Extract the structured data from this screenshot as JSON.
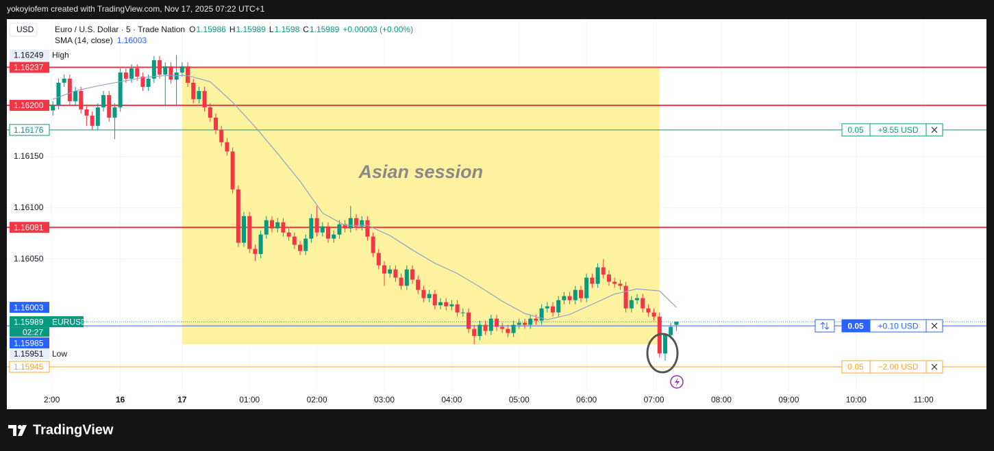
{
  "header": "yokoyiofem created with TradingView.com, Nov 17, 2025 07:22 UTC+1",
  "footer": "TradingView",
  "chart_data": {
    "type": "candlestick",
    "currency": "USD",
    "symbol": "Euro / U.S. Dollar · 5 · Trade Nation",
    "ohlc_labels": [
      "O",
      "H",
      "L",
      "C"
    ],
    "change": "+0.00003 (+0.00%)",
    "up_color": "#089981",
    "down_color": "#f23645",
    "xlim": [
      -156,
      716
    ],
    "xticks": [
      {
        "value": -116,
        "label": "2:00"
      },
      {
        "value": -55,
        "label": "16"
      },
      {
        "value": 0,
        "label": "17"
      },
      {
        "value": 60,
        "label": "01:00"
      },
      {
        "value": 120,
        "label": "02:00"
      },
      {
        "value": 180,
        "label": "03:00"
      },
      {
        "value": 240,
        "label": "04:00"
      },
      {
        "value": 300,
        "label": "05:00"
      },
      {
        "value": 360,
        "label": "06:00"
      },
      {
        "value": 420,
        "label": "07:00"
      },
      {
        "value": 480,
        "label": "08:00"
      },
      {
        "value": 540,
        "label": "09:00"
      },
      {
        "value": 600,
        "label": "10:00"
      },
      {
        "value": 660,
        "label": "11:00"
      }
    ],
    "ylim": [
      1.15921,
      1.16284
    ],
    "yticks": [
      {
        "value": 1.1615,
        "label": "1.16150"
      },
      {
        "value": 1.161,
        "label": "1.16100"
      },
      {
        "value": 1.1605,
        "label": "1.16050"
      }
    ],
    "grid": true,
    "x": [
      -115,
      -110,
      -105,
      -100,
      -95,
      -90,
      -85,
      -80,
      -75,
      -70,
      -65,
      -60,
      -55,
      -50,
      -45,
      -40,
      -35,
      -30,
      -25,
      -20,
      -15,
      -10,
      -5,
      0,
      5,
      10,
      15,
      20,
      25,
      30,
      35,
      40,
      45,
      50,
      55,
      60,
      65,
      70,
      75,
      80,
      85,
      90,
      95,
      100,
      105,
      110,
      115,
      120,
      125,
      130,
      135,
      140,
      145,
      150,
      155,
      160,
      165,
      170,
      175,
      180,
      185,
      190,
      195,
      200,
      205,
      210,
      215,
      220,
      225,
      230,
      235,
      240,
      245,
      250,
      255,
      260,
      265,
      270,
      275,
      280,
      285,
      290,
      295,
      300,
      305,
      310,
      315,
      320,
      325,
      330,
      335,
      340,
      345,
      350,
      355,
      360,
      365,
      370,
      375,
      380,
      385,
      390,
      395,
      400,
      405,
      410,
      415,
      420,
      425,
      430,
      435,
      440
    ],
    "candles": [
      [
        1.16195,
        1.16204,
        1.1619,
        1.162
      ],
      [
        1.162,
        1.16226,
        1.16196,
        1.16222
      ],
      [
        1.16222,
        1.1623,
        1.16218,
        1.16226
      ],
      [
        1.16226,
        1.1623,
        1.162,
        1.16204
      ],
      [
        1.16204,
        1.16218,
        1.162,
        1.16214
      ],
      [
        1.16214,
        1.16218,
        1.16192,
        1.16196
      ],
      [
        1.16196,
        1.162,
        1.1618,
        1.1619
      ],
      [
        1.1619,
        1.16194,
        1.16176,
        1.1618
      ],
      [
        1.1618,
        1.16202,
        1.16176,
        1.16198
      ],
      [
        1.16198,
        1.16214,
        1.16194,
        1.1621
      ],
      [
        1.1621,
        1.16214,
        1.16184,
        1.16188
      ],
      [
        1.16188,
        1.16202,
        1.16167,
        1.16198
      ],
      [
        1.16198,
        1.16236,
        1.16194,
        1.16232
      ],
      [
        1.16232,
        1.16236,
        1.16222,
        1.16226
      ],
      [
        1.16226,
        1.1624,
        1.16222,
        1.16236
      ],
      [
        1.16236,
        1.1624,
        1.16224,
        1.16228
      ],
      [
        1.16228,
        1.16232,
        1.16214,
        1.16218
      ],
      [
        1.16218,
        1.1623,
        1.16214,
        1.16226
      ],
      [
        1.16226,
        1.16248,
        1.16222,
        1.16244
      ],
      [
        1.16244,
        1.16248,
        1.16226,
        1.1623
      ],
      [
        1.1623,
        1.16242,
        1.162,
        1.16238
      ],
      [
        1.16238,
        1.16242,
        1.16221,
        1.16225
      ],
      [
        1.16225,
        1.16249,
        1.162,
        1.16232
      ],
      [
        1.16232,
        1.16242,
        1.16228,
        1.16238
      ],
      [
        1.16238,
        1.16242,
        1.16218,
        1.16222
      ],
      [
        1.16222,
        1.16226,
        1.16202,
        1.16206
      ],
      [
        1.16206,
        1.16218,
        1.16202,
        1.16214
      ],
      [
        1.16214,
        1.16218,
        1.16194,
        1.16198
      ],
      [
        1.16198,
        1.16202,
        1.16184,
        1.16188
      ],
      [
        1.16188,
        1.16192,
        1.16172,
        1.16176
      ],
      [
        1.16176,
        1.1618,
        1.1616,
        1.16164
      ],
      [
        1.16164,
        1.16168,
        1.16151,
        1.16155
      ],
      [
        1.16155,
        1.16159,
        1.16114,
        1.16118
      ],
      [
        1.16118,
        1.16122,
        1.16062,
        1.16066
      ],
      [
        1.16066,
        1.16096,
        1.16062,
        1.16092
      ],
      [
        1.16092,
        1.16096,
        1.16056,
        1.1606
      ],
      [
        1.1606,
        1.16064,
        1.16048,
        1.16055
      ],
      [
        1.16055,
        1.16078,
        1.16051,
        1.16074
      ],
      [
        1.16074,
        1.16092,
        1.1607,
        1.16088
      ],
      [
        1.16088,
        1.16092,
        1.16076,
        1.1608
      ],
      [
        1.1608,
        1.1609,
        1.16076,
        1.16086
      ],
      [
        1.16086,
        1.1609,
        1.16072,
        1.16076
      ],
      [
        1.16076,
        1.1608,
        1.16068,
        1.16072
      ],
      [
        1.16072,
        1.16076,
        1.1606,
        1.16064
      ],
      [
        1.16064,
        1.16068,
        1.16054,
        1.16058
      ],
      [
        1.16058,
        1.16074,
        1.16054,
        1.1607
      ],
      [
        1.1607,
        1.16094,
        1.16066,
        1.1609
      ],
      [
        1.1609,
        1.16102,
        1.16072,
        1.16076
      ],
      [
        1.16076,
        1.16086,
        1.16072,
        1.16082
      ],
      [
        1.16082,
        1.16086,
        1.16066,
        1.1607
      ],
      [
        1.1607,
        1.16078,
        1.16066,
        1.16074
      ],
      [
        1.16074,
        1.16088,
        1.1607,
        1.16084
      ],
      [
        1.16084,
        1.16088,
        1.16076,
        1.1608
      ],
      [
        1.1608,
        1.16102,
        1.16076,
        1.1609
      ],
      [
        1.1609,
        1.16094,
        1.16078,
        1.16082
      ],
      [
        1.16082,
        1.16092,
        1.16078,
        1.16088
      ],
      [
        1.16088,
        1.16092,
        1.16068,
        1.16072
      ],
      [
        1.16072,
        1.16076,
        1.16052,
        1.16056
      ],
      [
        1.16056,
        1.1606,
        1.1604,
        1.16044
      ],
      [
        1.16044,
        1.16048,
        1.16024,
        1.16036
      ],
      [
        1.16036,
        1.16044,
        1.16032,
        1.1604
      ],
      [
        1.1604,
        1.16044,
        1.16028,
        1.16032
      ],
      [
        1.16032,
        1.16036,
        1.1602,
        1.16024
      ],
      [
        1.16024,
        1.16044,
        1.1602,
        1.1604
      ],
      [
        1.1604,
        1.16044,
        1.16026,
        1.1603
      ],
      [
        1.1603,
        1.16034,
        1.16016,
        1.1602
      ],
      [
        1.1602,
        1.16024,
        1.16008,
        1.16012
      ],
      [
        1.16012,
        1.1602,
        1.16008,
        1.16016
      ],
      [
        1.16016,
        1.1602,
        1.16001,
        1.16005
      ],
      [
        1.16005,
        1.16012,
        1.16001,
        1.16008
      ],
      [
        1.16008,
        1.16012,
        1.16,
        1.16004
      ],
      [
        1.16004,
        1.1601,
        1.16,
        1.16006
      ],
      [
        1.16006,
        1.1601,
        1.15994,
        1.15998
      ],
      [
        1.15998,
        1.16002,
        1.15994,
        1.15998
      ],
      [
        1.15998,
        1.16002,
        1.15978,
        1.15982
      ],
      [
        1.15982,
        1.15986,
        1.15967,
        1.15975
      ],
      [
        1.15975,
        1.1599,
        1.15971,
        1.15986
      ],
      [
        1.15986,
        1.1599,
        1.15976,
        1.1598
      ],
      [
        1.1598,
        1.15996,
        1.15976,
        1.15992
      ],
      [
        1.15992,
        1.15996,
        1.1598,
        1.15984
      ],
      [
        1.15984,
        1.15988,
        1.15978,
        1.15982
      ],
      [
        1.15982,
        1.15986,
        1.15974,
        1.15978
      ],
      [
        1.15978,
        1.1599,
        1.15974,
        1.15986
      ],
      [
        1.15986,
        1.15992,
        1.15982,
        1.15988
      ],
      [
        1.15988,
        1.15992,
        1.15982,
        1.15986
      ],
      [
        1.15986,
        1.15996,
        1.15982,
        1.15992
      ],
      [
        1.15992,
        1.15996,
        1.15986,
        1.1599
      ],
      [
        1.1599,
        1.16006,
        1.15986,
        1.16002
      ],
      [
        1.16002,
        1.16008,
        1.15998,
        1.16004
      ],
      [
        1.16004,
        1.16008,
        1.15994,
        1.15998
      ],
      [
        1.15998,
        1.16014,
        1.15994,
        1.1601
      ],
      [
        1.1601,
        1.16018,
        1.16006,
        1.16014
      ],
      [
        1.16014,
        1.16018,
        1.16006,
        1.1601
      ],
      [
        1.1601,
        1.16024,
        1.16006,
        1.1602
      ],
      [
        1.1602,
        1.16024,
        1.16008,
        1.16012
      ],
      [
        1.16012,
        1.16036,
        1.16008,
        1.16032
      ],
      [
        1.16032,
        1.16036,
        1.16022,
        1.16026
      ],
      [
        1.16026,
        1.16046,
        1.16022,
        1.16042
      ],
      [
        1.16042,
        1.1605,
        1.16031,
        1.16035
      ],
      [
        1.16035,
        1.16039,
        1.16024,
        1.16028
      ],
      [
        1.16028,
        1.16032,
        1.16022,
        1.16026
      ],
      [
        1.16026,
        1.1603,
        1.1602,
        1.16024
      ],
      [
        1.16024,
        1.16028,
        1.15998,
        1.16002
      ],
      [
        1.16002,
        1.16014,
        1.15998,
        1.1601
      ],
      [
        1.1601,
        1.16016,
        1.16006,
        1.16012
      ],
      [
        1.16012,
        1.16016,
        1.15998,
        1.16002
      ],
      [
        1.16002,
        1.16006,
        1.15994,
        1.15998
      ],
      [
        1.15998,
        1.16002,
        1.1599,
        1.15994
      ],
      [
        1.15994,
        1.15998,
        1.15954,
        1.15958
      ],
      [
        1.15958,
        1.15978,
        1.15951,
        1.15976
      ],
      [
        1.15976,
        1.15988,
        1.15972,
        1.15984
      ],
      [
        1.15986,
        1.15989,
        1.1598,
        1.15989
      ]
    ],
    "sma": {
      "name": "SMA (14, close)",
      "color": "#8fa6c8",
      "label_color": "#2962ff",
      "x": [
        -115,
        -95,
        -75,
        -55,
        -35,
        -15,
        5,
        25,
        45,
        65,
        85,
        105,
        125,
        145,
        165,
        185,
        205,
        225,
        245,
        265,
        285,
        305,
        325,
        345,
        365,
        385,
        405,
        425,
        440
      ],
      "values": [
        1.16206,
        1.16214,
        1.16219,
        1.16223,
        1.16227,
        1.16229,
        1.16229,
        1.16223,
        1.16203,
        1.16179,
        1.16153,
        1.16126,
        1.16095,
        1.16083,
        1.16083,
        1.16073,
        1.16059,
        1.16046,
        1.16036,
        1.16023,
        1.16009,
        1.15997,
        1.15991,
        1.15996,
        1.16006,
        1.16016,
        1.16021,
        1.16019,
        1.16003
      ]
    },
    "levels": [
      1.16237,
      {
        "value": 1.162,
        "label": "1.16200"
      },
      1.16081
    ],
    "level_color": "#f23645",
    "high": {
      "price": 1.16249,
      "text": "High"
    },
    "low": {
      "price": 1.15951,
      "text": "Low"
    },
    "last": {
      "price": 1.15989,
      "symbol": "EURUSD",
      "countdown": "02:27",
      "color": "#089981"
    },
    "orders": [
      {
        "price": 1.16176,
        "qty": 0.05,
        "pnl": "+9.55 USD",
        "color": "#089981"
      },
      {
        "price": 1.15985,
        "qty": 0.05,
        "pnl": "+0.10 USD",
        "color": "#2962ff"
      },
      {
        "price": 1.15945,
        "qty": 0.05,
        "pnl": "−2.00 USD",
        "color": "#f5a623"
      }
    ],
    "session": {
      "text": "Asian session",
      "x": [
        0,
        425
      ],
      "y": [
        1.15967,
        1.16237
      ],
      "color": "#fdf2a0"
    }
  }
}
